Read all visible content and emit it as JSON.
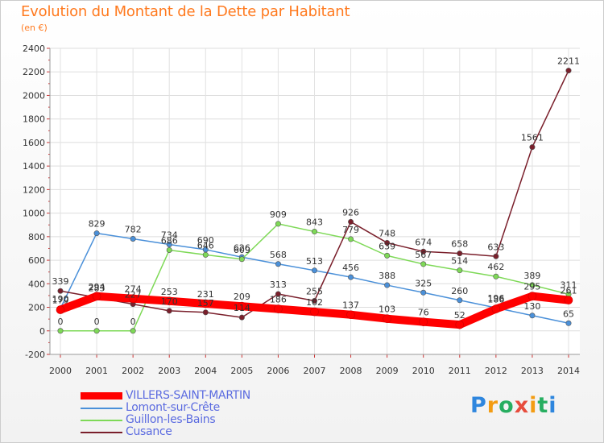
{
  "chart_data": {
    "type": "line",
    "title": "Evolution du Montant de la Dette par Habitant",
    "subtitle": "(en €)",
    "x": [
      "2000",
      "2001",
      "2002",
      "2003",
      "2004",
      "2005",
      "2006",
      "2007",
      "2008",
      "2009",
      "2010",
      "2011",
      "2012",
      "2013",
      "2014"
    ],
    "ylim": [
      -200,
      2400
    ],
    "yticks": [
      "-200",
      "0",
      "200",
      "400",
      "600",
      "800",
      "1000",
      "1200",
      "1400",
      "1600",
      "1800",
      "2000",
      "2200",
      "2400"
    ],
    "grid": true,
    "legend_position": "bottom-left",
    "series": [
      {
        "name": "VILLERS-SAINT-MARTIN",
        "color": "#ff0000",
        "values": [
          179,
          294,
          274,
          253,
          231,
          209,
          186,
          162,
          137,
          103,
          76,
          52,
          186,
          295,
          261
        ],
        "labels": [
          "179",
          "294",
          "274",
          "253",
          "231",
          "209",
          "186",
          "162",
          "137",
          "103",
          "76",
          "52",
          "186",
          "295",
          "261"
        ]
      },
      {
        "name": "Lomont-sur-Crête",
        "color": "#4a90d9",
        "values": [
          190,
          829,
          782,
          734,
          690,
          626,
          568,
          513,
          456,
          388,
          325,
          260,
          196,
          130,
          65
        ],
        "labels": [
          "190",
          "829",
          "782",
          "734",
          "690",
          "626",
          "568",
          "513",
          "456",
          "388",
          "325",
          "260",
          "196",
          "130",
          "65"
        ]
      },
      {
        "name": "Guillon-les-Bains",
        "color": "#7ed957",
        "values": [
          0,
          0,
          0,
          686,
          646,
          609,
          909,
          843,
          779,
          639,
          567,
          514,
          462,
          389,
          311
        ],
        "labels": [
          "0",
          "0",
          "0",
          "686",
          "646",
          "609",
          "909",
          "843",
          "779",
          "639",
          "567",
          "514",
          "462",
          "389",
          "311"
        ]
      },
      {
        "name": "Cusance",
        "color": "#7a1f2b",
        "values": [
          339,
          283,
          227,
          170,
          157,
          114,
          313,
          255,
          926,
          748,
          674,
          658,
          633,
          1561,
          2211
        ],
        "labels": [
          "339",
          "283",
          "227",
          "170",
          "157",
          "114",
          "313",
          "255",
          "926",
          "748",
          "674",
          "658",
          "633",
          "1561",
          "2211"
        ]
      }
    ]
  },
  "logo": {
    "letters": [
      "P",
      "r",
      "o",
      "x",
      "i",
      "t",
      "i"
    ],
    "colors": [
      "#2e86de",
      "#f39c12",
      "#27ae60",
      "#e74c3c",
      "#f39c12",
      "#27ae60",
      "#2e86de"
    ]
  }
}
